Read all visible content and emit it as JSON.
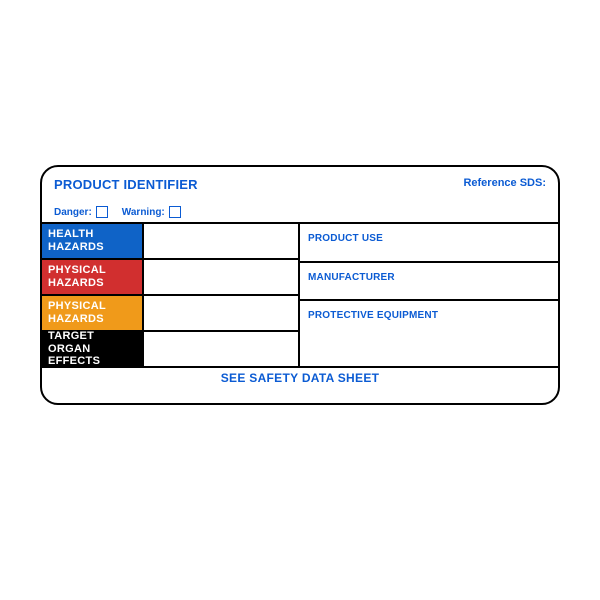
{
  "colors": {
    "brand_blue": "#0b5bd3",
    "health_bg": "#0f63c7",
    "physical1_bg": "#d12f2f",
    "physical2_bg": "#f09a1a",
    "target_bg": "#000000",
    "border": "#000000",
    "white": "#ffffff"
  },
  "header": {
    "product_identifier": "PRODUCT IDENTIFIER",
    "reference_sds": "Reference SDS:"
  },
  "signal": {
    "danger": "Danger:",
    "warning": "Warning:"
  },
  "hazards": [
    {
      "line1": "HEALTH",
      "line2": "HAZARDS",
      "bg_key": "health_bg"
    },
    {
      "line1": "PHYSICAL",
      "line2": "HAZARDS",
      "bg_key": "physical1_bg"
    },
    {
      "line1": "PHYSICAL",
      "line2": "HAZARDS",
      "bg_key": "physical2_bg"
    },
    {
      "line1": "TARGET ORGAN",
      "line2": "EFFECTS",
      "bg_key": "target_bg"
    }
  ],
  "right": {
    "product_use": "PRODUCT USE",
    "manufacturer": "MANUFACTURER",
    "protective_equipment": "PROTECTIVE EQUIPMENT"
  },
  "footer": "SEE SAFETY DATA SHEET"
}
